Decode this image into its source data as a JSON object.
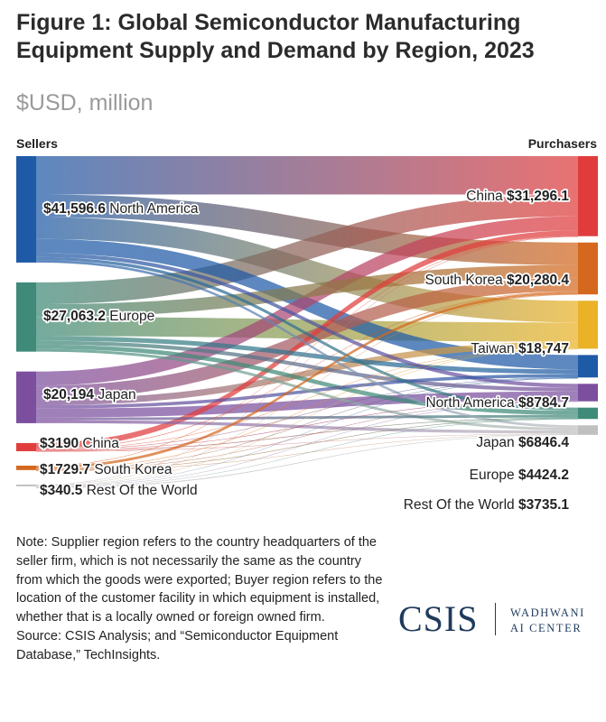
{
  "title": "Figure 1: Global Semiconductor Manufacturing Equipment Supply and Demand by Region, 2023",
  "subtitle": "$USD, million",
  "sellers_label": "Sellers",
  "purchasers_label": "Purchasers",
  "note": "Note: Supplier region refers to the country headquarters of the seller firm, which is not necessarily the same as the country from which the goods were exported; Buyer region refers to the location of the customer facility in which equipment is installed, whether that is a locally owned or foreign owned firm.",
  "source": "Source: CSIS Analysis; and “Semiconductor Equipment Database,” TechInsights.",
  "logo": {
    "main": "CSIS",
    "line1": "WADHWANI",
    "line2": "AI CENTER"
  },
  "chart_data": {
    "type": "sankey",
    "units": "$USD, million",
    "sources": [
      {
        "name": "North America",
        "value": 41596.6,
        "label_value": "$41,596.6",
        "color": "#1f5aa6"
      },
      {
        "name": "Europe",
        "value": 27063.2,
        "label_value": "$27,063.2",
        "color": "#3f8a78"
      },
      {
        "name": "Japan",
        "value": 20194,
        "label_value": "$20,194",
        "color": "#7b4f9e"
      },
      {
        "name": "China",
        "value": 3190,
        "label_value": "$3190",
        "color": "#e03c3c"
      },
      {
        "name": "South Korea",
        "value": 1729.7,
        "label_value": "$1729.7",
        "color": "#d4681e"
      },
      {
        "name": "Rest Of the World",
        "value": 340.5,
        "label_value": "$340.5",
        "color": "#c0c0c0"
      }
    ],
    "targets": [
      {
        "name": "China",
        "value": 31296.1,
        "label_value": "$31,296.1",
        "color": "#e03c3c"
      },
      {
        "name": "South Korea",
        "value": 20280.4,
        "label_value": "$20,280.4",
        "color": "#d4681e"
      },
      {
        "name": "Taiwan",
        "value": 18747,
        "label_value": "$18,747",
        "color": "#e9b227"
      },
      {
        "name": "North America",
        "value": 8784.7,
        "label_value": "$8784.7",
        "color": "#1f5aa6"
      },
      {
        "name": "Japan",
        "value": 6846.4,
        "label_value": "$6846.4",
        "color": "#7b4f9e"
      },
      {
        "name": "Europe",
        "value": 4424.2,
        "label_value": "$4424.2",
        "color": "#3f8a78"
      },
      {
        "name": "Rest Of the World",
        "value": 3735.1,
        "label_value": "$3735.1",
        "color": "#c0c0c0"
      }
    ],
    "flows": [
      [
        "North America",
        "China",
        15000
      ],
      [
        "North America",
        "South Korea",
        8800
      ],
      [
        "North America",
        "Taiwan",
        8500
      ],
      [
        "North America",
        "North America",
        5600
      ],
      [
        "North America",
        "Japan",
        1500
      ],
      [
        "North America",
        "Europe",
        1200
      ],
      [
        "North America",
        "Rest Of the World",
        996.6
      ],
      [
        "Europe",
        "China",
        8500
      ],
      [
        "Europe",
        "South Korea",
        5000
      ],
      [
        "Europe",
        "Taiwan",
        7500
      ],
      [
        "Europe",
        "North America",
        1800
      ],
      [
        "Europe",
        "Japan",
        1500
      ],
      [
        "Europe",
        "Europe",
        1700
      ],
      [
        "Europe",
        "Rest Of the World",
        1063.2
      ],
      [
        "Japan",
        "China",
        5500
      ],
      [
        "Japan",
        "South Korea",
        5200
      ],
      [
        "Japan",
        "Taiwan",
        2500
      ],
      [
        "Japan",
        "North America",
        1300
      ],
      [
        "Japan",
        "Japan",
        3500
      ],
      [
        "Japan",
        "Europe",
        1000
      ],
      [
        "Japan",
        "Rest Of the World",
        1194
      ],
      [
        "China",
        "China",
        2200
      ],
      [
        "China",
        "South Korea",
        200
      ],
      [
        "China",
        "Taiwan",
        150
      ],
      [
        "China",
        "North America",
        50
      ],
      [
        "China",
        "Japan",
        200
      ],
      [
        "China",
        "Europe",
        250
      ],
      [
        "China",
        "Rest Of the World",
        140
      ],
      [
        "South Korea",
        "China",
        86.1
      ],
      [
        "South Korea",
        "South Korea",
        1050
      ],
      [
        "South Korea",
        "Taiwan",
        70
      ],
      [
        "South Korea",
        "North America",
        20
      ],
      [
        "South Korea",
        "Japan",
        130
      ],
      [
        "South Korea",
        "Europe",
        224.2
      ],
      [
        "South Korea",
        "Rest Of the World",
        149.4
      ],
      [
        "Rest Of the World",
        "China",
        10
      ],
      [
        "Rest Of the World",
        "South Korea",
        30.4
      ],
      [
        "Rest Of the World",
        "Taiwan",
        27
      ],
      [
        "Rest Of the World",
        "North America",
        14.7
      ],
      [
        "Rest Of the World",
        "Japan",
        16.4
      ],
      [
        "Rest Of the World",
        "Europe",
        50
      ],
      [
        "Rest Of the World",
        "Rest Of the World",
        192
      ]
    ]
  }
}
